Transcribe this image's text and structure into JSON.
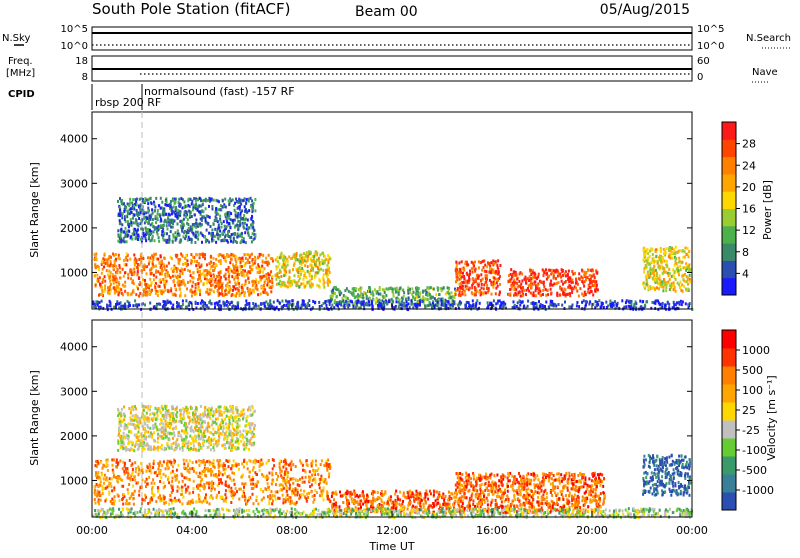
{
  "header": {
    "station": "South Pole Station (fitACF)",
    "beam": "Beam 00",
    "date": "05/Aug/2015"
  },
  "nsky_panel": {
    "left_label": "N.Sky",
    "right_label": "N.Search",
    "left_ticks": [
      "10^5",
      "10^0"
    ],
    "right_ticks": [
      "10^5",
      "10^0"
    ]
  },
  "freq_panel": {
    "left_label_lines": [
      "Freq.",
      "[MHz]"
    ],
    "right_label": "Nave",
    "left_ticks": [
      18,
      8
    ],
    "right_ticks": [
      60,
      0
    ]
  },
  "cpid": {
    "label": "CPID",
    "segments": [
      {
        "name": "rbsp 200 RF",
        "start_hour": 0.0,
        "end_hour": 2.0
      },
      {
        "name": "normalsound (fast) -157 RF",
        "start_hour": 2.0,
        "end_hour": 24.0
      }
    ]
  },
  "chart_data": [
    {
      "type": "heatmap",
      "ylabel": "Slant Range [km]",
      "xlabel": "Time UT",
      "x_ticks": [
        "00:00",
        "04:00",
        "08:00",
        "12:00",
        "16:00",
        "20:00",
        "00:00"
      ],
      "x_range_hours": [
        0,
        24
      ],
      "y_ticks": [
        1000,
        2000,
        3000,
        4000
      ],
      "ylim": [
        180,
        4600
      ],
      "colorbar": {
        "label": "Power [dB]",
        "ticks": [
          "4",
          "8",
          "12",
          "16",
          "20",
          "24",
          "28"
        ],
        "colors": [
          "#1a1aff",
          "#2a4fb0",
          "#3a8a6a",
          "#4cb04c",
          "#9acd32",
          "#ffd700",
          "#ffa500",
          "#ff7f00",
          "#ff4500",
          "#ff1a1a"
        ]
      },
      "scatter_regions": [
        {
          "t0": 0.05,
          "t1": 7.2,
          "r0": 500,
          "r1": 1450,
          "level": 0.75
        },
        {
          "t0": 7.3,
          "t1": 9.5,
          "r0": 700,
          "r1": 1500,
          "level": 0.55
        },
        {
          "t0": 9.5,
          "t1": 14.5,
          "r0": 300,
          "r1": 700,
          "level": 0.35
        },
        {
          "t0": 14.5,
          "t1": 16.3,
          "r0": 500,
          "r1": 1300,
          "level": 0.85
        },
        {
          "t0": 16.6,
          "t1": 20.2,
          "r0": 500,
          "r1": 1100,
          "level": 0.9
        },
        {
          "t0": 22.0,
          "t1": 23.9,
          "r0": 600,
          "r1": 1600,
          "level": 0.55
        },
        {
          "t0": 1.0,
          "t1": 6.5,
          "r0": 1700,
          "r1": 2700,
          "level": 0.2
        },
        {
          "t0": 0.0,
          "t1": 24.0,
          "r0": 200,
          "r1": 400,
          "level": 0.1
        }
      ]
    },
    {
      "type": "heatmap",
      "ylabel": "Slant Range [km]",
      "xlabel": "Time UT",
      "x_ticks": [
        "00:00",
        "04:00",
        "08:00",
        "12:00",
        "16:00",
        "20:00",
        "00:00"
      ],
      "x_range_hours": [
        0,
        24
      ],
      "y_ticks": [
        1000,
        2000,
        3000,
        4000
      ],
      "ylim": [
        180,
        4600
      ],
      "colorbar": {
        "label": "Velocity [m s⁻¹]",
        "ticks": [
          "1000",
          "500",
          "100",
          "25",
          "-25",
          "-100",
          "-500",
          "-1000"
        ],
        "colors": [
          "#2a4fb0",
          "#3a7f9a",
          "#3a9a6a",
          "#66cc33",
          "#c0c0c0",
          "#ffd700",
          "#ffa500",
          "#ff7f00",
          "#ff3300",
          "#ff0000"
        ]
      },
      "scatter_regions": [
        {
          "t0": 0.05,
          "t1": 9.5,
          "r0": 500,
          "r1": 1500,
          "level": 0.72
        },
        {
          "t0": 9.5,
          "t1": 14.5,
          "r0": 300,
          "r1": 800,
          "level": 0.8
        },
        {
          "t0": 14.5,
          "t1": 20.5,
          "r0": 300,
          "r1": 1200,
          "level": 0.78
        },
        {
          "t0": 22.0,
          "t1": 23.9,
          "r0": 700,
          "r1": 1600,
          "level": 0.08
        },
        {
          "t0": 1.0,
          "t1": 6.5,
          "r0": 1700,
          "r1": 2700,
          "level": 0.5
        },
        {
          "t0": 0.0,
          "t1": 24.0,
          "r0": 200,
          "r1": 400,
          "level": 0.4
        }
      ]
    }
  ]
}
